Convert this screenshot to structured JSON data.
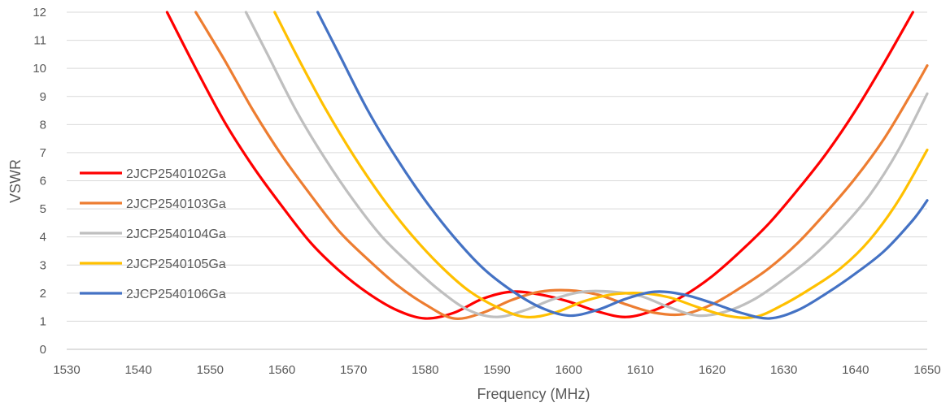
{
  "chart_data": {
    "type": "line",
    "title": "",
    "xlabel": "Frequency (MHz)",
    "ylabel": "VSWR",
    "xlim": [
      1530,
      1650
    ],
    "ylim": [
      0,
      12
    ],
    "x_ticks": [
      "1530",
      "1540",
      "1550",
      "1560",
      "1570",
      "1580",
      "1590",
      "1600",
      "1610",
      "1620",
      "1630",
      "1640",
      "1650"
    ],
    "y_ticks": [
      "0",
      "1",
      "2",
      "3",
      "4",
      "5",
      "6",
      "7",
      "8",
      "9",
      "10",
      "11",
      "12"
    ],
    "grid": "horizontal",
    "legend_position": "left",
    "series": [
      {
        "name": "2JCP2540102Ga",
        "color": "#ff0000",
        "x": [
          1544,
          1548,
          1552,
          1556,
          1560,
          1564,
          1568,
          1572,
          1576,
          1580,
          1584,
          1588,
          1592,
          1596,
          1600,
          1604,
          1608,
          1612,
          1616,
          1620,
          1624,
          1628,
          1632,
          1636,
          1640,
          1644,
          1648
        ],
        "y": [
          12,
          10,
          8.1,
          6.5,
          5.1,
          3.8,
          2.8,
          2.0,
          1.4,
          1.1,
          1.3,
          1.8,
          2.05,
          1.95,
          1.7,
          1.35,
          1.15,
          1.4,
          1.9,
          2.6,
          3.5,
          4.5,
          5.7,
          7.0,
          8.5,
          10.2,
          12
        ]
      },
      {
        "name": "2JCP2540103Ga",
        "color": "#ed7d31",
        "x": [
          1548,
          1552,
          1556,
          1560,
          1564,
          1568,
          1572,
          1576,
          1580,
          1584,
          1588,
          1592,
          1596,
          1600,
          1604,
          1608,
          1612,
          1616,
          1620,
          1624,
          1628,
          1632,
          1636,
          1640,
          1644,
          1648,
          1650
        ],
        "y": [
          12,
          10.3,
          8.5,
          6.9,
          5.5,
          4.2,
          3.2,
          2.3,
          1.6,
          1.1,
          1.3,
          1.75,
          2.05,
          2.1,
          1.95,
          1.6,
          1.3,
          1.25,
          1.6,
          2.2,
          2.9,
          3.8,
          4.9,
          6.1,
          7.5,
          9.2,
          10.1
        ]
      },
      {
        "name": "2JCP2540104Ga",
        "color": "#bfbfbf",
        "x": [
          1555,
          1558,
          1562,
          1566,
          1570,
          1574,
          1578,
          1582,
          1586,
          1590,
          1594,
          1598,
          1602,
          1606,
          1610,
          1614,
          1618,
          1622,
          1626,
          1630,
          1634,
          1638,
          1642,
          1646,
          1650
        ],
        "y": [
          12,
          10.5,
          8.5,
          6.8,
          5.3,
          4.0,
          3.0,
          2.1,
          1.4,
          1.15,
          1.4,
          1.8,
          2.05,
          2.05,
          1.9,
          1.5,
          1.2,
          1.35,
          1.8,
          2.5,
          3.3,
          4.3,
          5.5,
          7.1,
          9.1
        ]
      },
      {
        "name": "2JCP2540105Ga",
        "color": "#ffc000",
        "x": [
          1559,
          1562,
          1566,
          1570,
          1574,
          1578,
          1582,
          1586,
          1590,
          1594,
          1598,
          1602,
          1606,
          1610,
          1614,
          1618,
          1622,
          1626,
          1630,
          1634,
          1638,
          1642,
          1646,
          1650
        ],
        "y": [
          12,
          10.5,
          8.6,
          6.9,
          5.4,
          4.1,
          3.0,
          2.1,
          1.5,
          1.15,
          1.3,
          1.7,
          1.95,
          2.0,
          1.85,
          1.5,
          1.2,
          1.15,
          1.6,
          2.2,
          2.9,
          3.9,
          5.3,
          7.1
        ]
      },
      {
        "name": "2JCP2540106Ga",
        "color": "#4472c4",
        "x": [
          1565,
          1568,
          1572,
          1576,
          1580,
          1584,
          1588,
          1592,
          1596,
          1600,
          1604,
          1608,
          1612,
          1616,
          1620,
          1624,
          1628,
          1632,
          1636,
          1640,
          1644,
          1648,
          1650
        ],
        "y": [
          12,
          10.5,
          8.5,
          6.8,
          5.3,
          4.0,
          2.9,
          2.1,
          1.5,
          1.2,
          1.4,
          1.8,
          2.05,
          1.95,
          1.65,
          1.3,
          1.1,
          1.4,
          2.0,
          2.7,
          3.5,
          4.6,
          5.3
        ]
      }
    ]
  }
}
